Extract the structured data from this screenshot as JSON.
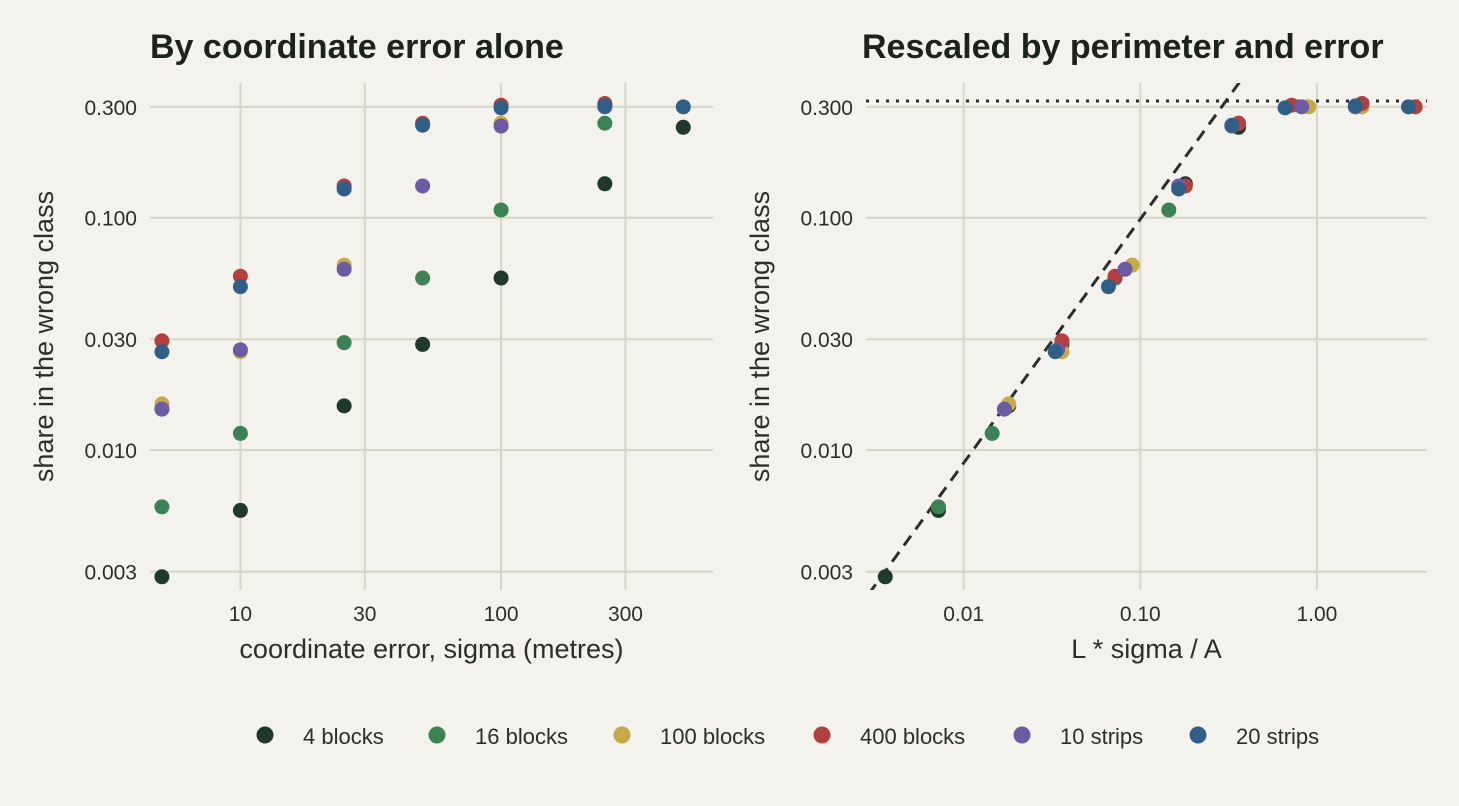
{
  "chart_data": [
    {
      "type": "scatter",
      "title": "By coordinate error alone",
      "xlabel": "coordinate error, sigma (metres)",
      "ylabel": "share in the wrong class",
      "xscale": "log",
      "yscale": "log",
      "xlim": [
        4.5,
        650
      ],
      "ylim": [
        0.0025,
        0.38
      ],
      "xticks": [
        10,
        30,
        100,
        300
      ],
      "xtick_labels": [
        "10",
        "30",
        "100",
        "300"
      ],
      "yticks": [
        0.003,
        0.01,
        0.03,
        0.1,
        0.3
      ],
      "ytick_labels": [
        "0.003",
        "0.010",
        "0.030",
        "0.100",
        "0.300"
      ],
      "grid": true,
      "series": [
        {
          "name": "4 blocks",
          "color": "#1f3a2b",
          "points": [
            [
              5,
              0.00285
            ],
            [
              10,
              0.0055
            ],
            [
              25,
              0.0155
            ],
            [
              50,
              0.0285
            ],
            [
              100,
              0.055
            ],
            [
              250,
              0.14
            ],
            [
              500,
              0.245
            ]
          ]
        },
        {
          "name": "16 blocks",
          "color": "#3c8254",
          "points": [
            [
              5,
              0.0057
            ],
            [
              10,
              0.0118
            ],
            [
              25,
              0.029
            ],
            [
              50,
              0.055
            ],
            [
              100,
              0.108
            ],
            [
              250,
              0.255
            ]
          ]
        },
        {
          "name": "100 blocks",
          "color": "#c6a949",
          "points": [
            [
              5,
              0.0158
            ],
            [
              10,
              0.0265
            ],
            [
              25,
              0.0625
            ],
            [
              100,
              0.255
            ]
          ]
        },
        {
          "name": "400 blocks",
          "color": "#b1403f",
          "points": [
            [
              5,
              0.0295
            ],
            [
              10,
              0.056
            ],
            [
              25,
              0.137
            ],
            [
              50,
              0.255
            ],
            [
              100,
              0.305
            ],
            [
              250,
              0.31
            ]
          ]
        },
        {
          "name": "10 strips",
          "color": "#6c5aa2",
          "points": [
            [
              5,
              0.015
            ],
            [
              10,
              0.027
            ],
            [
              25,
              0.06
            ],
            [
              50,
              0.137
            ],
            [
              100,
              0.248
            ],
            [
              250,
              0.3
            ]
          ]
        },
        {
          "name": "20 strips",
          "color": "#2f5f88",
          "points": [
            [
              5,
              0.0265
            ],
            [
              10,
              0.0505
            ],
            [
              25,
              0.133
            ],
            [
              50,
              0.25
            ],
            [
              100,
              0.297
            ],
            [
              250,
              0.303
            ],
            [
              500,
              0.3
            ]
          ]
        }
      ]
    },
    {
      "type": "scatter",
      "title": "Rescaled by perimeter and error",
      "xlabel": "L * sigma / A",
      "ylabel": "share in the wrong class",
      "xscale": "log",
      "yscale": "log",
      "xlim": [
        0.0028,
        4.2
      ],
      "ylim": [
        0.0025,
        0.38
      ],
      "xticks": [
        0.01,
        0.1,
        1
      ],
      "xtick_labels": [
        "0.01",
        "0.10",
        "1.00"
      ],
      "yticks": [
        0.003,
        0.01,
        0.03,
        0.1,
        0.3
      ],
      "ytick_labels": [
        "0.003",
        "0.010",
        "0.030",
        "0.100",
        "0.300"
      ],
      "grid": true,
      "reference_lines": [
        {
          "kind": "dashed",
          "points": [
            [
              0.0029,
              0.0024
            ],
            [
              0.38,
              0.4
            ]
          ]
        },
        {
          "kind": "dotted",
          "y": 0.318
        }
      ],
      "series": [
        {
          "name": "4 blocks",
          "color": "#1f3a2b",
          "points": [
            [
              0.0036,
              0.00285
            ],
            [
              0.0072,
              0.0055
            ],
            [
              0.018,
              0.0155
            ],
            [
              0.036,
              0.0285
            ],
            [
              0.072,
              0.055
            ],
            [
              0.18,
              0.14
            ],
            [
              0.36,
              0.245
            ]
          ]
        },
        {
          "name": "16 blocks",
          "color": "#3c8254",
          "points": [
            [
              0.0072,
              0.0057
            ],
            [
              0.0145,
              0.0118
            ],
            [
              0.036,
              0.029
            ],
            [
              0.072,
              0.055
            ],
            [
              0.145,
              0.108
            ],
            [
              0.36,
              0.255
            ]
          ]
        },
        {
          "name": "100 blocks",
          "color": "#c6a949",
          "points": [
            [
              0.018,
              0.0158
            ],
            [
              0.036,
              0.0265
            ],
            [
              0.09,
              0.0625
            ],
            [
              0.36,
              0.255
            ],
            [
              0.9,
              0.3
            ],
            [
              1.8,
              0.3
            ]
          ]
        },
        {
          "name": "400 blocks",
          "color": "#b1403f",
          "points": [
            [
              0.036,
              0.0295
            ],
            [
              0.072,
              0.056
            ],
            [
              0.18,
              0.137
            ],
            [
              0.36,
              0.255
            ],
            [
              0.72,
              0.305
            ],
            [
              1.8,
              0.31
            ],
            [
              3.6,
              0.3
            ]
          ]
        },
        {
          "name": "10 strips",
          "color": "#6c5aa2",
          "points": [
            [
              0.017,
              0.015
            ],
            [
              0.034,
              0.027
            ],
            [
              0.082,
              0.06
            ],
            [
              0.165,
              0.137
            ],
            [
              0.33,
              0.248
            ],
            [
              0.82,
              0.3
            ],
            [
              1.65,
              0.3
            ]
          ]
        },
        {
          "name": "20 strips",
          "color": "#2f5f88",
          "points": [
            [
              0.033,
              0.0265
            ],
            [
              0.066,
              0.0505
            ],
            [
              0.165,
              0.133
            ],
            [
              0.33,
              0.25
            ],
            [
              0.66,
              0.297
            ],
            [
              1.65,
              0.303
            ],
            [
              3.3,
              0.3
            ]
          ]
        }
      ]
    }
  ],
  "legend": {
    "placement": "bottom",
    "items": [
      {
        "label": "4 blocks",
        "color": "#1f3a2b"
      },
      {
        "label": "16 blocks",
        "color": "#3c8254"
      },
      {
        "label": "100 blocks",
        "color": "#c6a949"
      },
      {
        "label": "400 blocks",
        "color": "#b1403f"
      },
      {
        "label": "10 strips",
        "color": "#6c5aa2"
      },
      {
        "label": "20 strips",
        "color": "#2f5f88"
      }
    ]
  }
}
